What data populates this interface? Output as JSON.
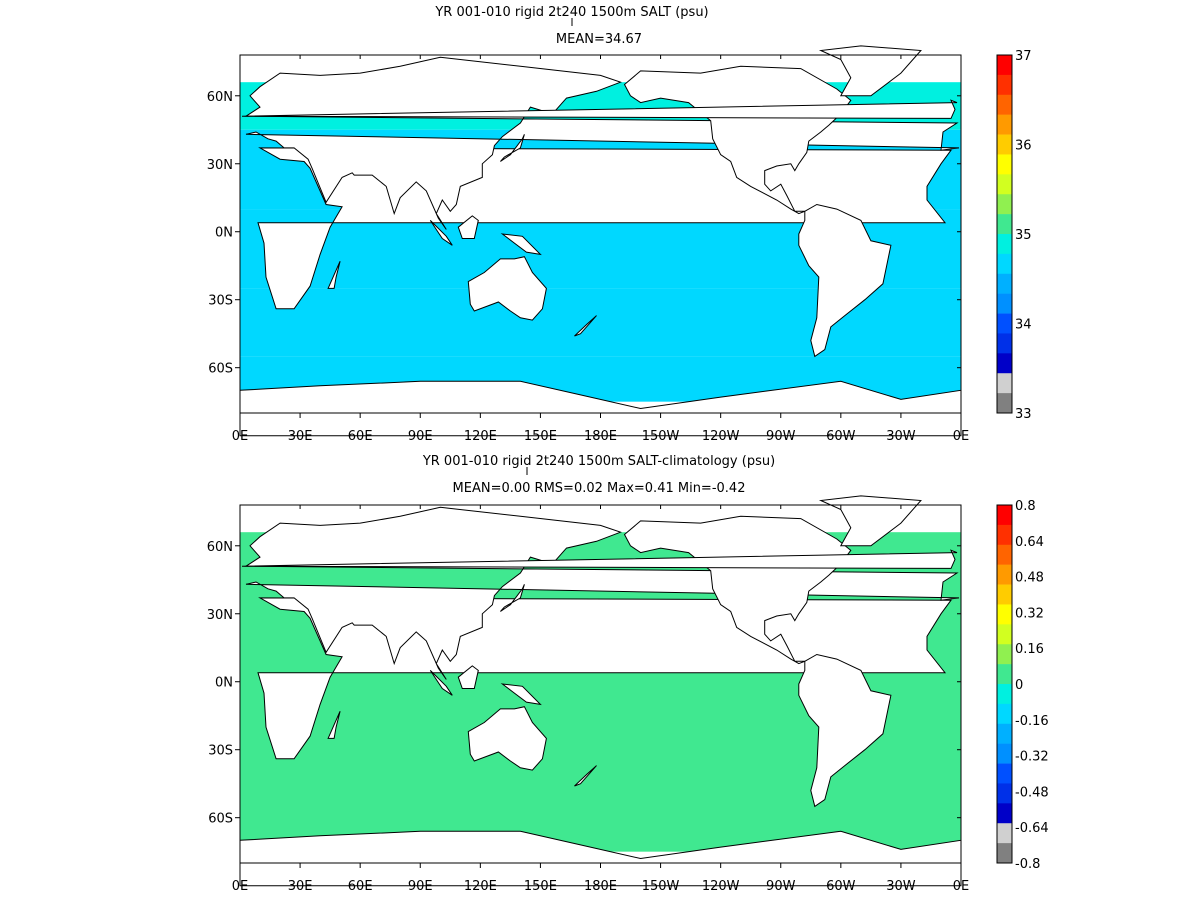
{
  "chart_data": [
    {
      "type": "heatmap",
      "title": "YR 001-010 rigid 2t240 1500m SALT (psu)",
      "subtitle": "MEAN=34.67",
      "x_ticks": [
        "0E",
        "30E",
        "60E",
        "90E",
        "120E",
        "150E",
        "180E",
        "150W",
        "120W",
        "90W",
        "60W",
        "30W",
        "0E"
      ],
      "y_ticks": [
        "60N",
        "30N",
        "0N",
        "30S",
        "60S"
      ],
      "colorbar": {
        "min": 33,
        "max": 37,
        "labels": [
          "37",
          "36",
          "35",
          "34",
          "33"
        ],
        "colors": [
          "#ff0000",
          "#ff3000",
          "#ff6400",
          "#ff9a00",
          "#ffcc00",
          "#ffff00",
          "#d2ff20",
          "#90f050",
          "#40e890",
          "#00f0e0",
          "#00d8ff",
          "#00b0ff",
          "#0090ff",
          "#0050ff",
          "#0030e8",
          "#0000c8",
          "#d0d0d0",
          "#808080"
        ]
      },
      "bands": [
        {
          "lat_range": [
            75,
            45
          ],
          "level": 35.0
        },
        {
          "lat_range": [
            45,
            10
          ],
          "level": 34.6
        },
        {
          "lat_range": [
            10,
            -25
          ],
          "level": 34.7
        },
        {
          "lat_range": [
            -25,
            -55
          ],
          "level": 34.6
        },
        {
          "lat_range": [
            -55,
            -75
          ],
          "level": 34.7
        }
      ]
    },
    {
      "type": "heatmap",
      "title": "YR 001-010 rigid 2t240 1500m SALT-climatology (psu)",
      "subtitle": "MEAN=0.00   RMS=0.02   Max=0.41   Min=-0.42",
      "x_ticks": [
        "0E",
        "30E",
        "60E",
        "90E",
        "120E",
        "150E",
        "180E",
        "150W",
        "120W",
        "90W",
        "60W",
        "30W",
        "0E"
      ],
      "y_ticks": [
        "60N",
        "30N",
        "0N",
        "30S",
        "60S"
      ],
      "colorbar": {
        "min": -0.8,
        "max": 0.8,
        "labels": [
          "0.8",
          "0.64",
          "0.48",
          "0.32",
          "0.16",
          "0",
          "-0.16",
          "-0.32",
          "-0.48",
          "-0.64",
          "-0.8"
        ],
        "colors": [
          "#ff0000",
          "#ff3000",
          "#ff6400",
          "#ff9a00",
          "#ffcc00",
          "#ffff00",
          "#d2ff20",
          "#90f050",
          "#40e890",
          "#00f0e0",
          "#00d8ff",
          "#00b0ff",
          "#0090ff",
          "#0050ff",
          "#0030e8",
          "#0000c8",
          "#d0d0d0",
          "#808080"
        ]
      },
      "bands": [
        {
          "lat_range": [
            75,
            -75
          ],
          "level": 0.02
        }
      ]
    }
  ]
}
